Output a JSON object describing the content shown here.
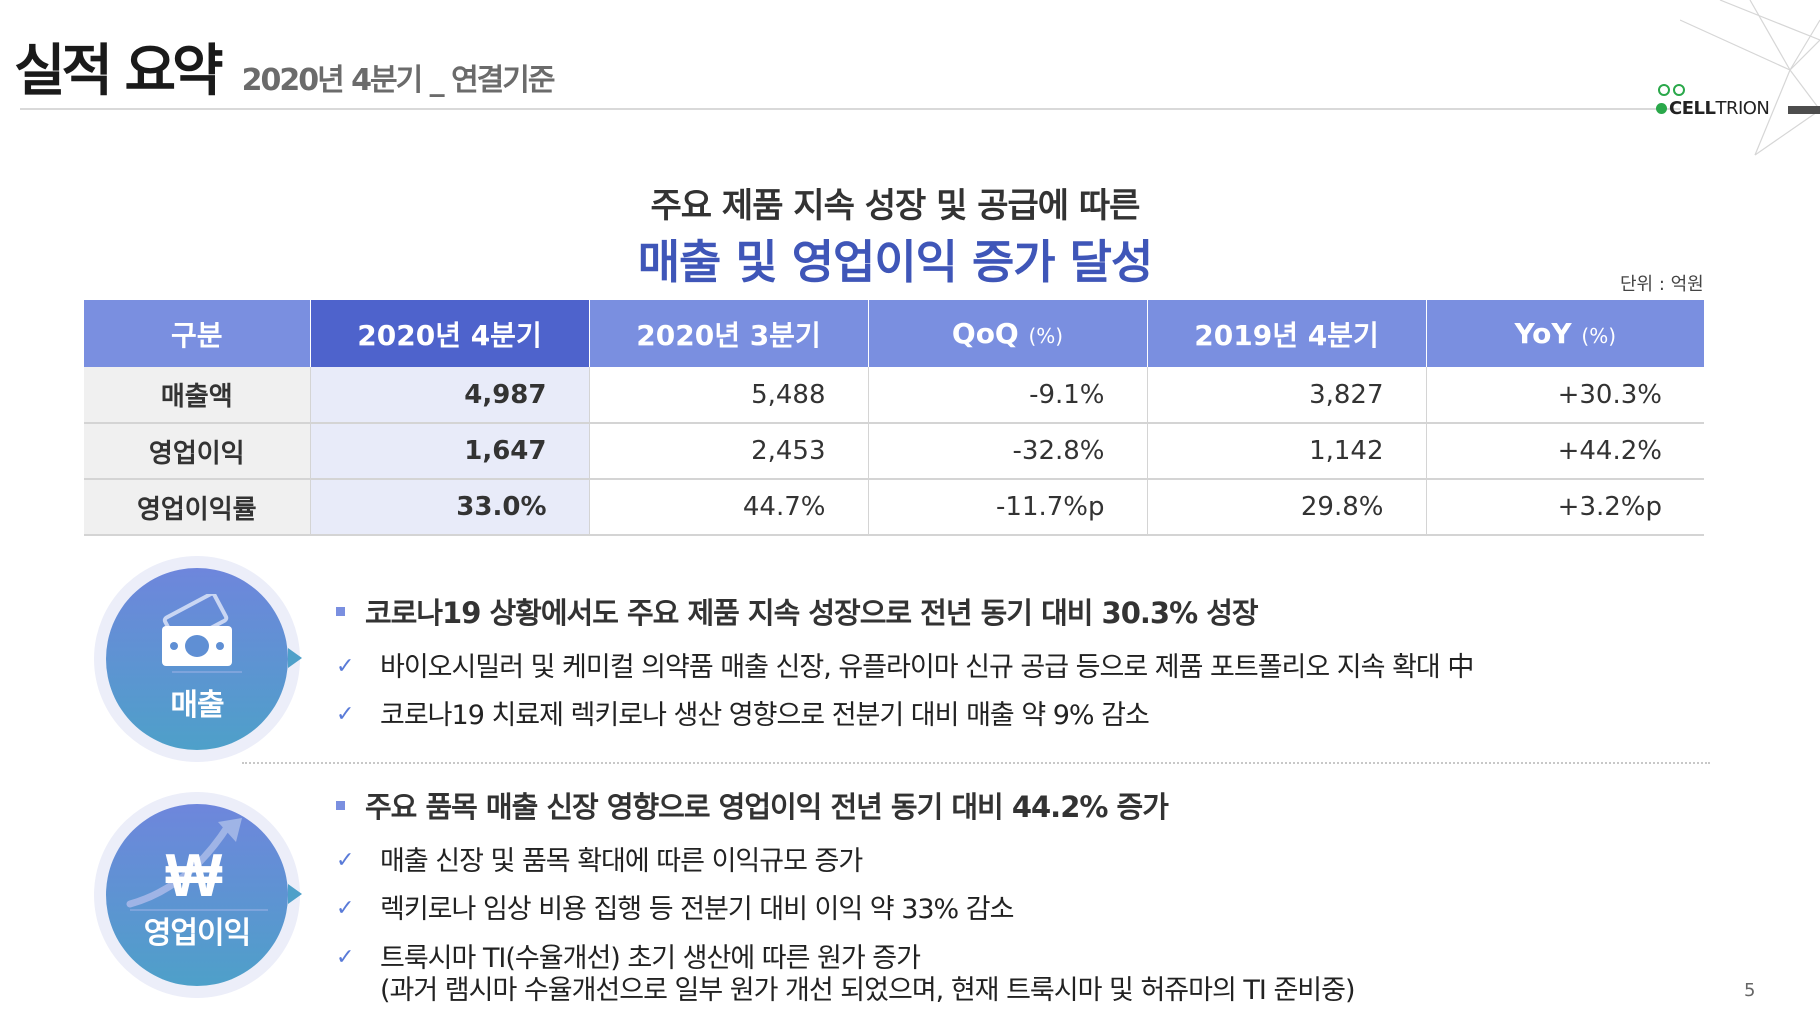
{
  "header": {
    "title": "실적 요약",
    "subtitle": "2020년 4분기 _ 연결기준"
  },
  "logo": {
    "brand_bold": "CELL",
    "brand_light": "TRION",
    "accent_color": "#2aa84a"
  },
  "headline": {
    "line1": "주요 제품  지속 성장 및 공급에 따른",
    "line2": "매출 및 영업이익 증가 달성"
  },
  "unit": "단위 : 억원",
  "table": {
    "columns": [
      {
        "label": "구분",
        "suffix": ""
      },
      {
        "label": "2020년 4분기",
        "suffix": ""
      },
      {
        "label": "2020년 3분기",
        "suffix": ""
      },
      {
        "label": "QoQ",
        "suffix": "(%)"
      },
      {
        "label": "2019년 4분기",
        "suffix": ""
      },
      {
        "label": "YoY",
        "suffix": "(%)"
      }
    ],
    "rows": [
      {
        "label": "매출액",
        "cells": [
          "4,987",
          "5,488",
          "-9.1%",
          "3,827",
          "+30.3%"
        ]
      },
      {
        "label": "영업이익",
        "cells": [
          "1,647",
          "2,453",
          "-32.8%",
          "1,142",
          "+44.2%"
        ]
      },
      {
        "label": "영업이익률",
        "cells": [
          "33.0%",
          "44.7%",
          "-11.7%p",
          "29.8%",
          "+3.2%p"
        ]
      }
    ],
    "header_color": "#7a8fe0",
    "highlight_color": "#4e63cc"
  },
  "sections": [
    {
      "badge": "매출",
      "icon": "money-bill-icon",
      "headline": "코로나19 상황에서도 주요 제품 지속 성장으로 전년 동기 대비 30.3% 성장",
      "bullets": [
        "바이오시밀러 및 케미컬 의약품 매출 신장, 유플라이마 신규 공급 등으로 제품 포트폴리오 지속 확대 中",
        "코로나19 치료제 렉키로나 생산 영향으로 전분기 대비 매출 약 9% 감소"
      ]
    },
    {
      "badge": "영업이익",
      "icon": "won-growth-icon",
      "headline": "주요 품목 매출 신장 영향으로 영업이익 전년 동기 대비 44.2% 증가",
      "bullets": [
        "매출 신장 및 품목 확대에 따른 이익규모 증가",
        "렉키로나 임상 비용 집행 등 전분기 대비 이익 약 33% 감소",
        "트룩시마 TI(수율개선) 초기 생산에 따른 원가 증가",
        "(과거 램시마 수율개선으로 일부 원가 개선 되었으며, 현재 트룩시마 및 허쥬마의 TI 준비중)"
      ]
    }
  ],
  "page_number": "5",
  "check_glyph": "✓"
}
